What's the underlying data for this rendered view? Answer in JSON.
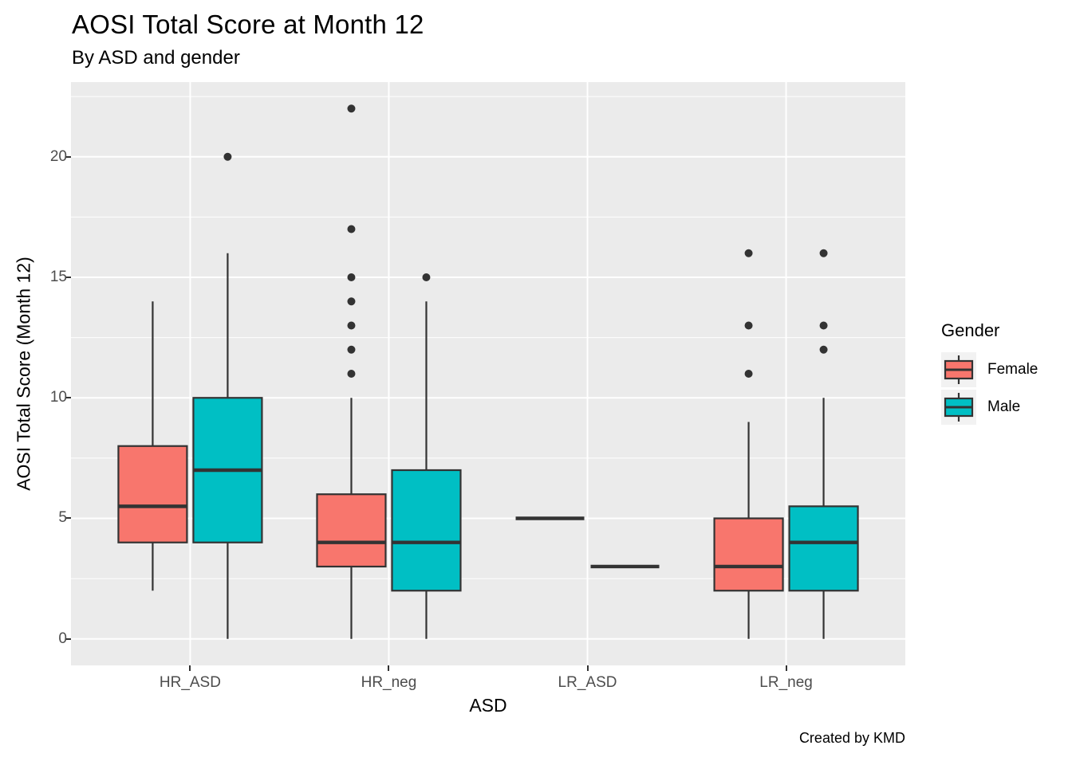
{
  "chart_data": {
    "type": "boxplot",
    "title": "AOSI Total Score at Month 12",
    "subtitle": "By ASD and gender",
    "xlabel": "ASD",
    "ylabel": "AOSI Total Score (Month 12)",
    "caption": "Created by KMD",
    "x_categories": [
      "HR_ASD",
      "HR_neg",
      "LR_ASD",
      "LR_neg"
    ],
    "y_ticks": [
      0,
      5,
      10,
      15,
      20
    ],
    "y_minor_ticks": [
      2.5,
      7.5,
      12.5,
      17.5,
      22.5
    ],
    "ylim": [
      -1.1,
      23.1
    ],
    "grid": "on",
    "legend_position": "right",
    "legend": {
      "title": "Gender",
      "entries": [
        {
          "label": "Female",
          "color": "#F8766D"
        },
        {
          "label": "Male",
          "color": "#00BFC4"
        }
      ]
    },
    "series": [
      {
        "name": "Female",
        "color": "#F8766D",
        "boxes": [
          {
            "category": "HR_ASD",
            "whisker_low": 2,
            "q1": 4,
            "median": 5.5,
            "q3": 8,
            "whisker_high": 14,
            "outliers": []
          },
          {
            "category": "HR_neg",
            "whisker_low": 0,
            "q1": 3,
            "median": 4,
            "q3": 6,
            "whisker_high": 10,
            "outliers": [
              11,
              12,
              13,
              14,
              15,
              17,
              22
            ]
          },
          {
            "category": "LR_ASD",
            "whisker_low": 5,
            "q1": 5,
            "median": 5,
            "q3": 5,
            "whisker_high": 5,
            "outliers": []
          },
          {
            "category": "LR_neg",
            "whisker_low": 0,
            "q1": 2,
            "median": 3,
            "q3": 5,
            "whisker_high": 9,
            "outliers": [
              11,
              13,
              16
            ]
          }
        ]
      },
      {
        "name": "Male",
        "color": "#00BFC4",
        "boxes": [
          {
            "category": "HR_ASD",
            "whisker_low": 0,
            "q1": 4,
            "median": 7,
            "q3": 10,
            "whisker_high": 16,
            "outliers": [
              20
            ]
          },
          {
            "category": "HR_neg",
            "whisker_low": 0,
            "q1": 2,
            "median": 4,
            "q3": 7,
            "whisker_high": 14,
            "outliers": [
              15
            ]
          },
          {
            "category": "LR_ASD",
            "whisker_low": 3,
            "q1": 3,
            "median": 3,
            "q3": 3,
            "whisker_high": 3,
            "outliers": []
          },
          {
            "category": "LR_neg",
            "whisker_low": 0,
            "q1": 2,
            "median": 4,
            "q3": 5.5,
            "whisker_high": 10,
            "outliers": [
              12,
              13,
              16
            ]
          }
        ]
      }
    ],
    "colors": {
      "panel_background": "#EBEBEB",
      "gridline": "#FFFFFF",
      "box_border": "#333333",
      "median_line": "#333333",
      "outlier_point": "#333333",
      "tick_label": "#4D4D4D",
      "tick_mark": "#333333",
      "legend_key_background": "#F2F2F2"
    }
  }
}
